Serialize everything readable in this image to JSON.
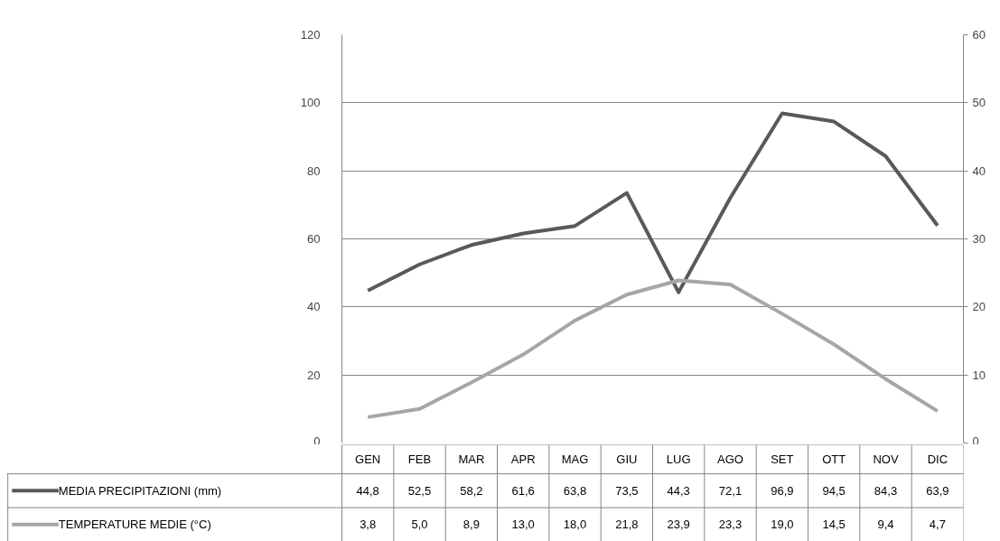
{
  "chart_data": {
    "type": "line",
    "categories": [
      "GEN",
      "FEB",
      "MAR",
      "APR",
      "MAG",
      "GIU",
      "LUG",
      "AGO",
      "SET",
      "OTT",
      "NOV",
      "DIC"
    ],
    "series": [
      {
        "name": "MEDIA PRECIPITAZIONI (mm)",
        "color": "#595959",
        "values": [
          44.8,
          52.5,
          58.2,
          61.6,
          63.8,
          73.5,
          44.3,
          72.1,
          96.9,
          94.5,
          84.3,
          63.9
        ],
        "value_labels": [
          "44,8",
          "52,5",
          "58,2",
          "61,6",
          "63,8",
          "73,5",
          "44,3",
          "72,1",
          "96,9",
          "94,5",
          "84,3",
          "63,9"
        ]
      },
      {
        "name": "TEMPERATURE MEDIE (°C)",
        "color": "#a6a6a6",
        "axis": "y2",
        "values": [
          3.8,
          5.0,
          8.9,
          13.0,
          18.0,
          21.8,
          23.9,
          23.3,
          19.0,
          14.5,
          9.4,
          4.7
        ],
        "value_labels": [
          "3,8",
          "5,0",
          "8,9",
          "13,0",
          "18,0",
          "21,8",
          "23,9",
          "23,3",
          "19,0",
          "14,5",
          "9,4",
          "4,7"
        ]
      }
    ],
    "ylim": [
      0,
      120
    ],
    "yticks": [
      {
        "value": 0,
        "label": "0"
      },
      {
        "value": 20,
        "label": "20"
      },
      {
        "value": 40,
        "label": "40"
      },
      {
        "value": 60,
        "label": "60"
      },
      {
        "value": 80,
        "label": "80"
      },
      {
        "value": 100,
        "label": "100"
      },
      {
        "value": 120,
        "label": "120"
      }
    ],
    "y2lim": [
      0,
      60
    ],
    "y2ticks": [
      {
        "value": 0,
        "label": "0"
      },
      {
        "value": 10,
        "label": "10"
      },
      {
        "value": 20,
        "label": "20"
      },
      {
        "value": 30,
        "label": "30"
      },
      {
        "value": 40,
        "label": "40"
      },
      {
        "value": 50,
        "label": "50"
      },
      {
        "value": 60,
        "label": "60"
      }
    ],
    "grid": "y",
    "legend": "bottom",
    "marker": "none",
    "line_style": "solid"
  }
}
